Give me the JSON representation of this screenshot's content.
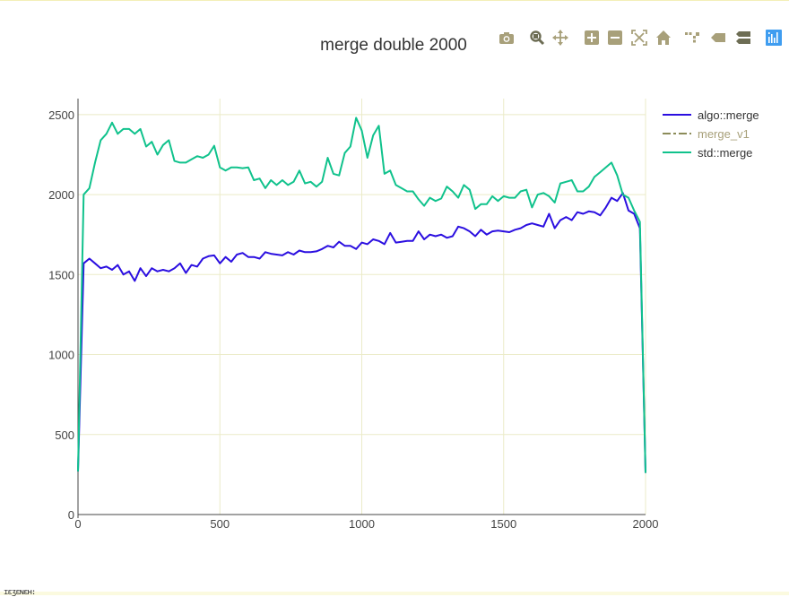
{
  "modebar": {
    "buttons": [
      {
        "name": "camera-icon",
        "title": "Download plot as a png"
      },
      {
        "name": "zoom-icon",
        "title": "Zoom"
      },
      {
        "name": "pan-icon",
        "title": "Pan"
      },
      {
        "name": "zoom-in-icon",
        "title": "Zoom in"
      },
      {
        "name": "zoom-out-icon",
        "title": "Zoom out"
      },
      {
        "name": "autoscale-icon",
        "title": "Autoscale"
      },
      {
        "name": "home-icon",
        "title": "Reset axes"
      },
      {
        "name": "spike-lines-icon",
        "title": "Toggle Spike Lines"
      },
      {
        "name": "hover-closest-icon",
        "title": "Show closest data on hover"
      },
      {
        "name": "hover-compare-icon",
        "title": "Compare data on hover"
      },
      {
        "name": "plotly-logo-icon",
        "title": "Produced with Plotly"
      }
    ],
    "icon_color": "#a8a07a",
    "active_icon_color": "#6d6d54",
    "logo_color": "#3f9df0"
  },
  "footer_text": "ɪɛʒɛɴɛʜ:",
  "chart_data": {
    "type": "line",
    "title": "merge double 2000",
    "xlabel": "",
    "ylabel": "",
    "xlim": [
      0,
      2000
    ],
    "ylim": [
      0,
      2600
    ],
    "x_ticks": [
      0,
      500,
      1000,
      1500,
      2000
    ],
    "y_ticks": [
      0,
      500,
      1000,
      1500,
      2000,
      2500
    ],
    "grid": true,
    "legend_position": "top-right",
    "series": [
      {
        "name": "algo::merge",
        "color": "#2b0fe0",
        "dash": "solid",
        "x": [
          0,
          20,
          40,
          60,
          80,
          100,
          120,
          140,
          160,
          180,
          200,
          220,
          240,
          260,
          280,
          300,
          320,
          340,
          360,
          380,
          400,
          420,
          440,
          460,
          480,
          500,
          520,
          540,
          560,
          580,
          600,
          620,
          640,
          660,
          680,
          700,
          720,
          740,
          760,
          780,
          800,
          820,
          840,
          860,
          880,
          900,
          920,
          940,
          960,
          980,
          1000,
          1020,
          1040,
          1060,
          1080,
          1100,
          1120,
          1140,
          1160,
          1180,
          1200,
          1220,
          1240,
          1260,
          1280,
          1300,
          1320,
          1340,
          1360,
          1380,
          1400,
          1420,
          1440,
          1460,
          1480,
          1500,
          1520,
          1540,
          1560,
          1580,
          1600,
          1620,
          1640,
          1660,
          1680,
          1700,
          1720,
          1740,
          1760,
          1780,
          1800,
          1820,
          1840,
          1860,
          1880,
          1900,
          1920,
          1940,
          1960,
          1980,
          2000
        ],
        "y": [
          270,
          1570,
          1600,
          1570,
          1540,
          1550,
          1530,
          1560,
          1500,
          1520,
          1460,
          1540,
          1490,
          1540,
          1520,
          1530,
          1520,
          1540,
          1570,
          1510,
          1560,
          1550,
          1600,
          1615,
          1620,
          1570,
          1610,
          1580,
          1625,
          1635,
          1610,
          1610,
          1600,
          1640,
          1630,
          1625,
          1620,
          1640,
          1625,
          1650,
          1640,
          1640,
          1645,
          1660,
          1680,
          1670,
          1705,
          1680,
          1680,
          1660,
          1700,
          1690,
          1720,
          1710,
          1690,
          1760,
          1700,
          1705,
          1710,
          1710,
          1770,
          1720,
          1750,
          1740,
          1750,
          1730,
          1740,
          1800,
          1790,
          1770,
          1740,
          1780,
          1750,
          1770,
          1775,
          1770,
          1765,
          1780,
          1790,
          1810,
          1820,
          1810,
          1800,
          1880,
          1790,
          1840,
          1860,
          1840,
          1890,
          1880,
          1895,
          1890,
          1870,
          1920,
          1980,
          1960,
          2010,
          1900,
          1880,
          1790,
          260
        ]
      },
      {
        "name": "merge_v1",
        "color": "#8c8c5a",
        "dash": "dashdot",
        "x": [],
        "y": []
      },
      {
        "name": "std::merge",
        "color": "#10c28c",
        "dash": "solid",
        "x": [
          0,
          20,
          40,
          60,
          80,
          100,
          120,
          140,
          160,
          180,
          200,
          220,
          240,
          260,
          280,
          300,
          320,
          340,
          360,
          380,
          400,
          420,
          440,
          460,
          480,
          500,
          520,
          540,
          560,
          580,
          600,
          620,
          640,
          660,
          680,
          700,
          720,
          740,
          760,
          780,
          800,
          820,
          840,
          860,
          880,
          900,
          920,
          940,
          960,
          980,
          1000,
          1020,
          1040,
          1060,
          1080,
          1100,
          1120,
          1140,
          1160,
          1180,
          1200,
          1220,
          1240,
          1260,
          1280,
          1300,
          1320,
          1340,
          1360,
          1380,
          1400,
          1420,
          1440,
          1460,
          1480,
          1500,
          1520,
          1540,
          1560,
          1580,
          1600,
          1620,
          1640,
          1660,
          1680,
          1700,
          1720,
          1740,
          1760,
          1780,
          1800,
          1820,
          1840,
          1860,
          1880,
          1900,
          1920,
          1940,
          1960,
          1980,
          2000
        ],
        "y": [
          270,
          2000,
          2040,
          2200,
          2340,
          2380,
          2450,
          2380,
          2410,
          2410,
          2380,
          2410,
          2300,
          2330,
          2250,
          2310,
          2340,
          2210,
          2200,
          2200,
          2220,
          2240,
          2230,
          2250,
          2305,
          2170,
          2150,
          2170,
          2170,
          2165,
          2170,
          2090,
          2100,
          2040,
          2090,
          2060,
          2090,
          2060,
          2080,
          2150,
          2070,
          2080,
          2050,
          2080,
          2230,
          2130,
          2120,
          2260,
          2300,
          2480,
          2400,
          2230,
          2370,
          2430,
          2130,
          2150,
          2060,
          2040,
          2020,
          2020,
          1970,
          1930,
          1980,
          1960,
          1975,
          2050,
          2020,
          1980,
          2060,
          2030,
          1910,
          1940,
          1940,
          1990,
          1960,
          1990,
          1980,
          1980,
          2020,
          2030,
          1920,
          2000,
          2010,
          1990,
          1950,
          2070,
          2080,
          2090,
          2020,
          2020,
          2050,
          2110,
          2140,
          2170,
          2200,
          2120,
          2000,
          1980,
          1900,
          1830,
          260
        ]
      }
    ]
  }
}
